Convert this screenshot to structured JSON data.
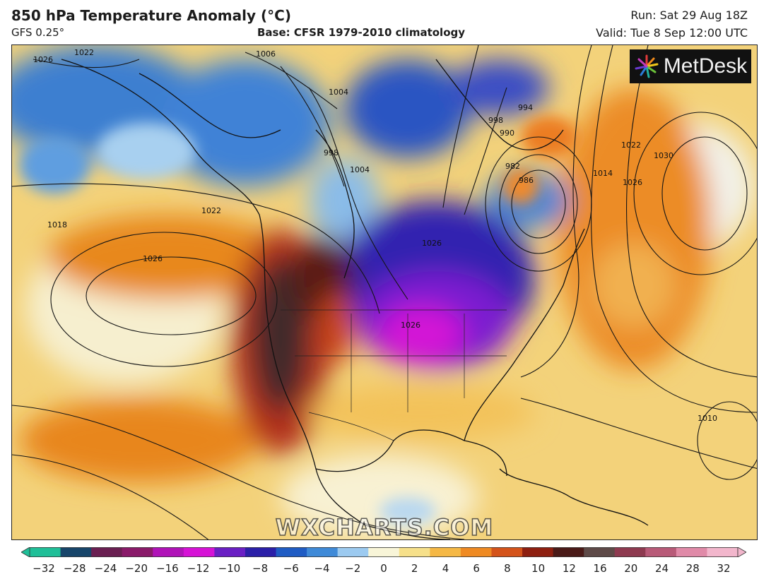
{
  "header": {
    "title": "850 hPa Temperature Anomaly (°C)",
    "model": "GFS 0.25°",
    "base": "Base: CFSR 1979-2010 climatology",
    "run": "Run: Sat 29 Aug 18Z",
    "valid": "Valid: Tue 8 Sep 12:00 UTC"
  },
  "logo": {
    "text": "MetDesk",
    "icon": "starburst-logo-icon"
  },
  "watermark": "WXCHARTS.COM",
  "map": {
    "contour_labels": [
      "1022",
      "1026",
      "1006",
      "1004",
      "998",
      "994",
      "990",
      "982",
      "986",
      "1014",
      "1022",
      "1030",
      "1026",
      "998",
      "1004",
      "1018",
      "1022",
      "1026",
      "1026",
      "1026",
      "1010"
    ]
  },
  "colorbar": {
    "ticks": [
      "−32",
      "−28",
      "−24",
      "−20",
      "−16",
      "−12",
      "−10",
      "−8",
      "−6",
      "−4",
      "−2",
      "0",
      "2",
      "4",
      "6",
      "8",
      "10",
      "12",
      "16",
      "20",
      "24",
      "28",
      "32"
    ],
    "colors": [
      "#1fbf98",
      "#17456a",
      "#6a1f52",
      "#8a1a6a",
      "#b013b8",
      "#d612d6",
      "#6a1fc4",
      "#2b1fa8",
      "#1f5cc4",
      "#3f8ad8",
      "#9ccaf0",
      "#f8f5d8",
      "#f6e08a",
      "#f5b845",
      "#ef8a22",
      "#d4531a",
      "#8e1f10",
      "#4a1a18",
      "#5e4a48",
      "#8e3a50",
      "#b85a78",
      "#e08aa8",
      "#f2b6cc"
    ]
  }
}
